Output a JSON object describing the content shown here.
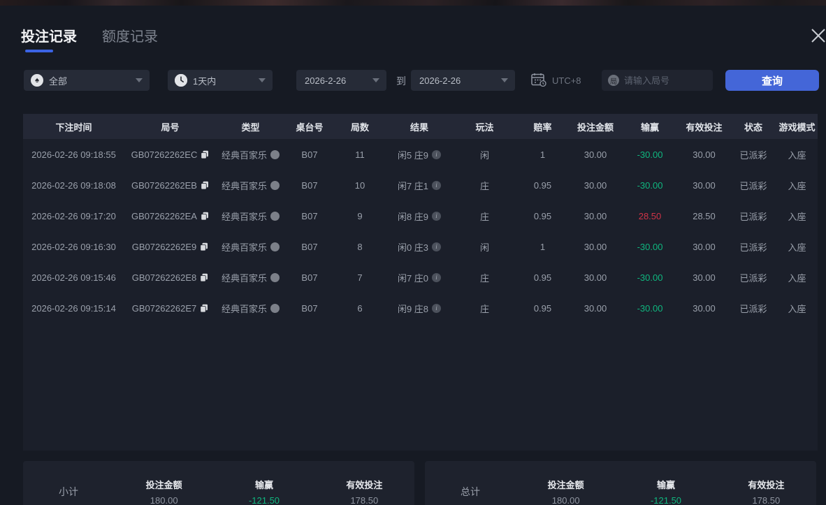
{
  "tabs": [
    {
      "label": "投注记录",
      "active": true
    },
    {
      "label": "额度记录",
      "active": false
    }
  ],
  "filters": {
    "game_type_value": "全部",
    "time_range_value": "1天内",
    "date_from": "2026-2-26",
    "to_label": "到",
    "date_to": "2026-2-26",
    "timezone": "UTC+8",
    "search_icon_char": "局",
    "search_placeholder": "请输入局号",
    "query_label": "查询"
  },
  "table": {
    "headers": [
      "下注时间",
      "局号",
      "类型",
      "桌台号",
      "局数",
      "结果",
      "玩法",
      "赔率",
      "投注金额",
      "输赢",
      "有效投注",
      "状态",
      "游戏模式"
    ],
    "rows": [
      {
        "time": "2026-02-26 09:18:55",
        "game_no": "GB07262262EC",
        "type": "经典百家乐",
        "table_no": "B07",
        "round": "11",
        "result": "闲5 庄9",
        "play": "闲",
        "odds": "1",
        "bet": "30.00",
        "win": "-30.00",
        "win_color": "green",
        "valid": "30.00",
        "status": "已派彩",
        "mode": "入座"
      },
      {
        "time": "2026-02-26 09:18:08",
        "game_no": "GB07262262EB",
        "type": "经典百家乐",
        "table_no": "B07",
        "round": "10",
        "result": "闲7 庄1",
        "play": "庄",
        "odds": "0.95",
        "bet": "30.00",
        "win": "-30.00",
        "win_color": "green",
        "valid": "30.00",
        "status": "已派彩",
        "mode": "入座"
      },
      {
        "time": "2026-02-26 09:17:20",
        "game_no": "GB07262262EA",
        "type": "经典百家乐",
        "table_no": "B07",
        "round": "9",
        "result": "闲8 庄9",
        "play": "庄",
        "odds": "0.95",
        "bet": "30.00",
        "win": "28.50",
        "win_color": "red",
        "valid": "28.50",
        "status": "已派彩",
        "mode": "入座"
      },
      {
        "time": "2026-02-26 09:16:30",
        "game_no": "GB07262262E9",
        "type": "经典百家乐",
        "table_no": "B07",
        "round": "8",
        "result": "闲0 庄3",
        "play": "闲",
        "odds": "1",
        "bet": "30.00",
        "win": "-30.00",
        "win_color": "green",
        "valid": "30.00",
        "status": "已派彩",
        "mode": "入座"
      },
      {
        "time": "2026-02-26 09:15:46",
        "game_no": "GB07262262E8",
        "type": "经典百家乐",
        "table_no": "B07",
        "round": "7",
        "result": "闲7 庄0",
        "play": "庄",
        "odds": "0.95",
        "bet": "30.00",
        "win": "-30.00",
        "win_color": "green",
        "valid": "30.00",
        "status": "已派彩",
        "mode": "入座"
      },
      {
        "time": "2026-02-26 09:15:14",
        "game_no": "GB07262262E7",
        "type": "经典百家乐",
        "table_no": "B07",
        "round": "6",
        "result": "闲9 庄8",
        "play": "庄",
        "odds": "0.95",
        "bet": "30.00",
        "win": "-30.00",
        "win_color": "green",
        "valid": "30.00",
        "status": "已派彩",
        "mode": "入座"
      }
    ]
  },
  "summary": {
    "subtotal": {
      "label": "小计",
      "bet_label": "投注金额",
      "bet": "180.00",
      "win_label": "输赢",
      "win": "-121.50",
      "valid_label": "有效投注",
      "valid": "178.50"
    },
    "total": {
      "label": "总计",
      "bet_label": "投注金额",
      "bet": "180.00",
      "win_label": "输赢",
      "win": "-121.50",
      "valid_label": "有效投注",
      "valid": "178.50"
    }
  },
  "colors": {
    "accent_blue": "#4466d8",
    "tab_underline": "#3b63e4",
    "loss_green": "#0fb77f",
    "win_red": "#cf3347"
  }
}
